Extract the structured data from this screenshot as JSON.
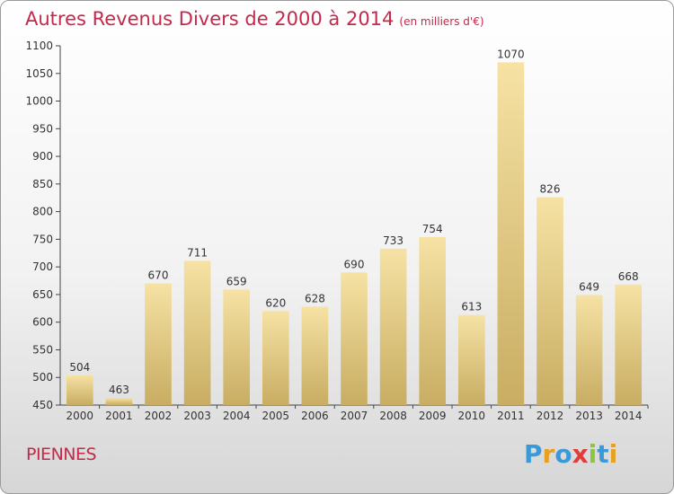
{
  "title": "Autres Revenus Divers de 2000 à 2014",
  "title_unit": "(en milliers d'€)",
  "place": "PIENNES",
  "logo": {
    "text": "Proxiti",
    "letters": [
      {
        "ch": "P",
        "color": "#3a9ad9"
      },
      {
        "ch": "r",
        "color": "#e8a020"
      },
      {
        "ch": "o",
        "color": "#3a9ad9"
      },
      {
        "ch": "x",
        "color": "#e03c3c"
      },
      {
        "ch": "i",
        "color": "#8cc63f"
      },
      {
        "ch": "t",
        "color": "#3a9ad9"
      },
      {
        "ch": "i",
        "color": "#e8a020"
      }
    ]
  },
  "colors": {
    "title": "#c4284a",
    "bar_light": "#f6e2a4",
    "bar_dark": "#c8ad62"
  },
  "chart_data": {
    "type": "bar",
    "title": "Autres Revenus Divers de 2000 à 2014",
    "xlabel": "",
    "ylabel": "",
    "categories": [
      "2000",
      "2001",
      "2002",
      "2003",
      "2004",
      "2005",
      "2006",
      "2007",
      "2008",
      "2009",
      "2010",
      "2011",
      "2012",
      "2013",
      "2014"
    ],
    "values": [
      504,
      463,
      670,
      711,
      659,
      620,
      628,
      690,
      733,
      754,
      613,
      1070,
      826,
      649,
      668
    ],
    "ylim": [
      450,
      1100
    ],
    "yticks": [
      450,
      500,
      550,
      600,
      650,
      700,
      750,
      800,
      850,
      900,
      950,
      1000,
      1050,
      1100
    ],
    "grid": false,
    "legend": "none"
  }
}
